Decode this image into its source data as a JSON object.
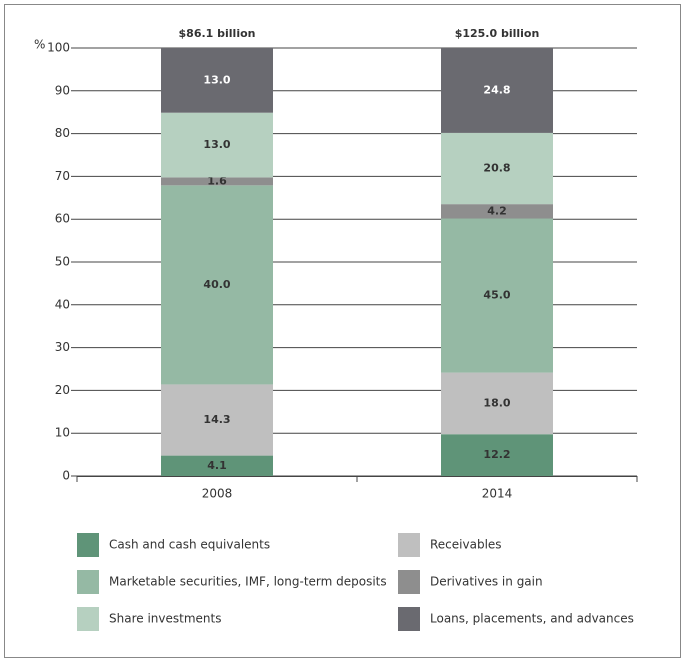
{
  "chart_data": {
    "type": "stacked-bar-percent",
    "ylabel": "%",
    "ylim": [
      0,
      100
    ],
    "yticks": [
      0,
      10,
      20,
      30,
      40,
      50,
      60,
      70,
      80,
      90,
      100
    ],
    "grid": true,
    "categories": [
      "2008",
      "2014"
    ],
    "totals": [
      "$86.1 billion",
      "$125.0 billion"
    ],
    "series": [
      {
        "name": "Cash and cash equivalents",
        "color": "#5f9478",
        "values": [
          4.1,
          12.2
        ],
        "value_labels": [
          "4.1",
          "12.2"
        ]
      },
      {
        "name": "Receivables",
        "color": "#bfbfbf",
        "values": [
          14.3,
          18.0
        ],
        "value_labels": [
          "14.3",
          "18.0"
        ]
      },
      {
        "name": "Marketable securities, IMF, long-term deposits",
        "color": "#95b9a4",
        "values": [
          40.0,
          45.0
        ],
        "value_labels": [
          "40.0",
          "45.0"
        ]
      },
      {
        "name": "Derivatives in gain",
        "color": "#8e8e8e",
        "values": [
          1.6,
          4.2
        ],
        "value_labels": [
          "1.6",
          "4.2"
        ]
      },
      {
        "name": "Share investments",
        "color": "#b6d0c0",
        "values": [
          13.0,
          20.8
        ],
        "value_labels": [
          "13.0",
          "20.8"
        ]
      },
      {
        "name": "Loans, placements, and advances",
        "color": "#6a6a70",
        "values": [
          13.0,
          24.8
        ],
        "value_labels": [
          "13.0",
          "24.8"
        ]
      }
    ],
    "legend": "bottom"
  }
}
